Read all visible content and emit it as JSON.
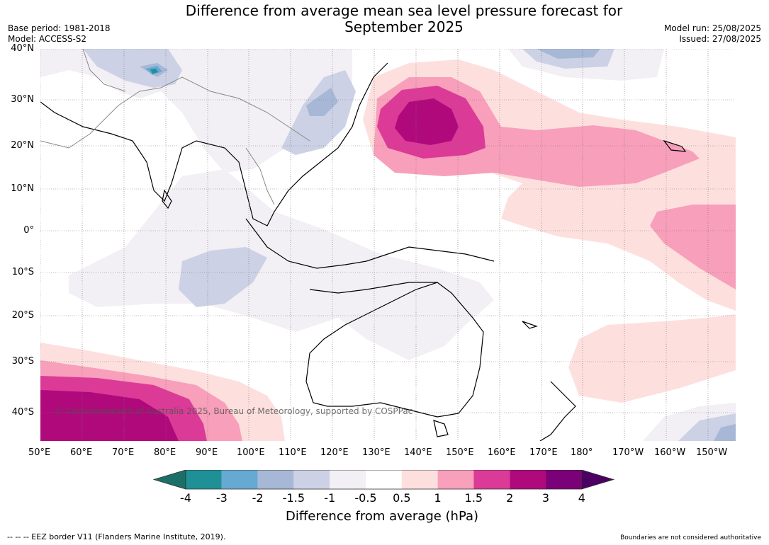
{
  "title_line1": "Difference from average mean sea level pressure forecast for",
  "title_line2": "September 2025",
  "meta": {
    "base_period": "Base period: 1981-2018",
    "model": "Model: ACCESS-S2",
    "model_run": "Model run: 25/08/2025",
    "issued": "Issued: 27/08/2025"
  },
  "lat_labels": [
    "40°N",
    "30°N",
    "20°N",
    "10°N",
    "0°",
    "10°S",
    "20°S",
    "30°S",
    "40°S"
  ],
  "lon_labels": [
    "50°E",
    "60°E",
    "70°E",
    "80°E",
    "90°E",
    "100°E",
    "110°E",
    "120°E",
    "130°E",
    "140°E",
    "150°E",
    "160°E",
    "170°E",
    "180°",
    "170°W",
    "160°W",
    "150°W"
  ],
  "copyright": "© Commonwealth of Australia 2025, Bureau of Meteorology, supported by COSPPac",
  "colorbar": {
    "ticks": [
      "-4",
      "-3",
      "-2",
      "-1.5",
      "-1",
      "-0.5",
      "0.5",
      "1",
      "1.5",
      "2",
      "3",
      "4"
    ],
    "colors": [
      "#1b6f66",
      "#1f9196",
      "#66a9d2",
      "#a6b8d6",
      "#cdd1e5",
      "#f2eff5",
      "#ffffff",
      "#fde0de",
      "#f89fbb",
      "#dc3a97",
      "#b0097c",
      "#7a0177",
      "#4b0062"
    ],
    "label": "Difference from average (hPa)"
  },
  "footer_left": "--  --  -- EEZ border V11 (Flanders Marine Institute, 2019).",
  "footer_right": "Boundaries are not considered authoritative"
}
